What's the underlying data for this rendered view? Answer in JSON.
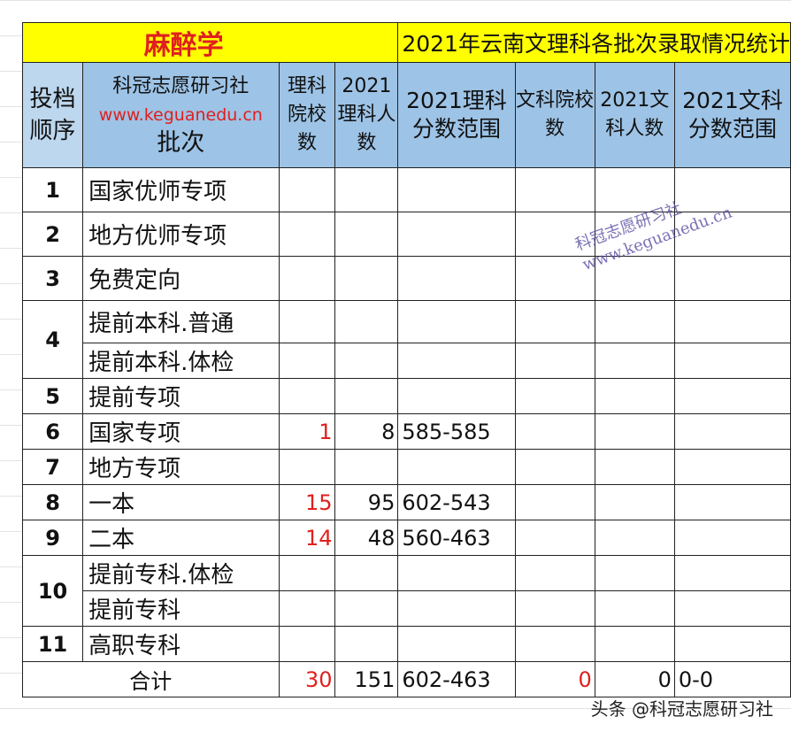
{
  "title": {
    "subject": "麻醉学",
    "heading": "2021年云南文理科各批次录取情况统计"
  },
  "header": {
    "order": "投档顺序",
    "brand": "科冠志愿研习社",
    "url": "www.keguanedu.cn",
    "batch": "批次",
    "cols": [
      "理科院校数",
      "2021理科人数",
      "2021理科分数范围",
      "文科院校数",
      "2021文科人数",
      "2021文科分数范围"
    ]
  },
  "rows": [
    {
      "no": "1",
      "batch": "国家优师专项",
      "sci_schools": "",
      "sci_count": "",
      "sci_range": ""
    },
    {
      "no": "2",
      "batch": "地方优师专项",
      "sci_schools": "",
      "sci_count": "",
      "sci_range": ""
    },
    {
      "no": "3",
      "batch": "免费定向",
      "sci_schools": "",
      "sci_count": "",
      "sci_range": ""
    },
    {
      "no": "4",
      "batch": "提前本科.普通",
      "sci_schools": "",
      "sci_count": "",
      "sci_range": ""
    },
    {
      "no": "",
      "batch": "提前本科.体检",
      "sci_schools": "",
      "sci_count": "",
      "sci_range": ""
    },
    {
      "no": "5",
      "batch": "提前专项",
      "sci_schools": "",
      "sci_count": "",
      "sci_range": ""
    },
    {
      "no": "6",
      "batch": "国家专项",
      "sci_schools": "1",
      "sci_count": "8",
      "sci_range": "585-585"
    },
    {
      "no": "7",
      "batch": "地方专项",
      "sci_schools": "",
      "sci_count": "",
      "sci_range": ""
    },
    {
      "no": "8",
      "batch": "一本",
      "sci_schools": "15",
      "sci_count": "95",
      "sci_range": "602-543"
    },
    {
      "no": "9",
      "batch": "二本",
      "sci_schools": "14",
      "sci_count": "48",
      "sci_range": "560-463"
    },
    {
      "no": "10",
      "batch": "提前专科.体检",
      "sci_schools": "",
      "sci_count": "",
      "sci_range": ""
    },
    {
      "no": "",
      "batch": "提前专科",
      "sci_schools": "",
      "sci_count": "",
      "sci_range": ""
    },
    {
      "no": "11",
      "batch": "高职专科",
      "sci_schools": "",
      "sci_count": "",
      "sci_range": ""
    }
  ],
  "total": {
    "label": "合计",
    "sci_schools": "30",
    "sci_count": "151",
    "sci_range": "602-463",
    "arts_schools": "0",
    "arts_count": "0",
    "arts_range": "0-0"
  },
  "watermark": {
    "line1": "科冠志愿研习社",
    "line2": "www.keguanedu.cn"
  },
  "footer": "头条 @科冠志愿研习社"
}
